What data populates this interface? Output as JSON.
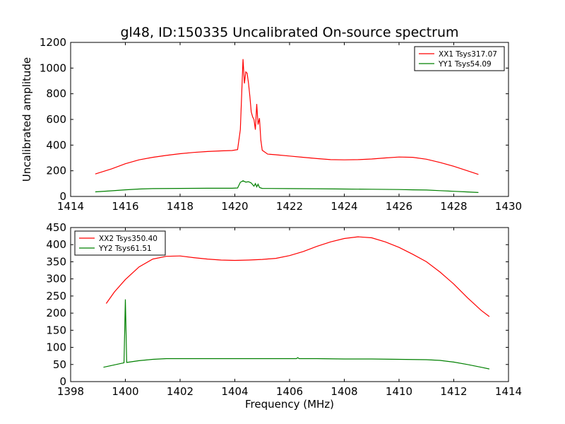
{
  "title": "gl48, ID:150335 Uncalibrated On-source spectrum",
  "colors": {
    "xx": "#ff0000",
    "yy": "#008000",
    "axis": "#000000",
    "background": "#ffffff"
  },
  "chart_data": [
    {
      "type": "line",
      "ylabel": "Uncalibrated amplitude",
      "xlabel": "",
      "xlim": [
        1414,
        1430
      ],
      "ylim": [
        0,
        1200
      ],
      "xticks": [
        1414,
        1416,
        1418,
        1420,
        1422,
        1424,
        1426,
        1428,
        1430
      ],
      "yticks": [
        0,
        200,
        400,
        600,
        800,
        1000,
        1200
      ],
      "legend_position": "top-right",
      "series": [
        {
          "name": "XX1 Tsys317.07",
          "color": "#ff0000",
          "x": [
            1414.9,
            1415.5,
            1416.0,
            1416.5,
            1417.0,
            1417.5,
            1418.0,
            1418.5,
            1419.0,
            1419.5,
            1419.9,
            1420.1,
            1420.2,
            1420.3,
            1420.35,
            1420.4,
            1420.45,
            1420.5,
            1420.55,
            1420.6,
            1420.65,
            1420.7,
            1420.75,
            1420.8,
            1420.85,
            1420.9,
            1420.95,
            1421.0,
            1421.2,
            1421.5,
            1422.0,
            1422.5,
            1423.0,
            1423.5,
            1424.0,
            1424.5,
            1425.0,
            1425.5,
            1426.0,
            1426.5,
            1427.0,
            1427.5,
            1428.0,
            1428.5,
            1428.9
          ],
          "y": [
            175,
            215,
            255,
            285,
            305,
            320,
            333,
            343,
            350,
            355,
            358,
            365,
            520,
            1070,
            880,
            970,
            960,
            880,
            780,
            660,
            620,
            600,
            520,
            720,
            560,
            610,
            440,
            360,
            330,
            325,
            315,
            305,
            295,
            287,
            285,
            287,
            292,
            300,
            307,
            305,
            290,
            265,
            235,
            200,
            172
          ]
        },
        {
          "name": "YY1 Tsys54.09",
          "color": "#008000",
          "x": [
            1414.9,
            1415.5,
            1416.0,
            1416.5,
            1417.0,
            1418.0,
            1419.0,
            1419.9,
            1420.1,
            1420.2,
            1420.3,
            1420.4,
            1420.5,
            1420.6,
            1420.7,
            1420.75,
            1420.8,
            1420.85,
            1420.9,
            1420.95,
            1421.0,
            1422.0,
            1423.0,
            1424.0,
            1425.0,
            1426.0,
            1426.5,
            1427.0,
            1427.5,
            1428.0,
            1428.5,
            1428.9
          ],
          "y": [
            36,
            44,
            52,
            58,
            61,
            63,
            64,
            64,
            66,
            110,
            122,
            112,
            115,
            105,
            80,
            100,
            75,
            95,
            70,
            66,
            63,
            61,
            60,
            58,
            56,
            54,
            52,
            50,
            45,
            40,
            35,
            31
          ]
        }
      ]
    },
    {
      "type": "line",
      "ylabel": "",
      "xlabel": "Frequency (MHz)",
      "xlim": [
        1398,
        1414
      ],
      "ylim": [
        0,
        450
      ],
      "xticks": [
        1398,
        1400,
        1402,
        1404,
        1406,
        1408,
        1410,
        1412,
        1414
      ],
      "yticks": [
        0,
        50,
        100,
        150,
        200,
        250,
        300,
        350,
        400,
        450
      ],
      "legend_position": "top-left",
      "series": [
        {
          "name": "XX2 Tsys350.40",
          "color": "#ff0000",
          "x": [
            1399.3,
            1399.6,
            1400.0,
            1400.5,
            1401.0,
            1401.5,
            1402.0,
            1402.5,
            1403.0,
            1403.5,
            1404.0,
            1404.5,
            1405.0,
            1405.5,
            1406.0,
            1406.5,
            1407.0,
            1407.5,
            1408.0,
            1408.5,
            1409.0,
            1409.5,
            1410.0,
            1410.5,
            1411.0,
            1411.5,
            1412.0,
            1412.5,
            1413.0,
            1413.3
          ],
          "y": [
            228,
            262,
            298,
            335,
            358,
            366,
            367,
            362,
            358,
            355,
            354,
            355,
            357,
            360,
            368,
            380,
            395,
            408,
            418,
            423,
            420,
            408,
            392,
            372,
            350,
            320,
            285,
            245,
            208,
            190
          ]
        },
        {
          "name": "YY2 Tsys61.51",
          "color": "#008000",
          "x": [
            1399.2,
            1399.5,
            1399.9,
            1399.95,
            1400.0,
            1400.05,
            1400.5,
            1401.0,
            1401.5,
            1402.0,
            1403.0,
            1404.0,
            1405.0,
            1406.0,
            1406.25,
            1406.3,
            1406.35,
            1407.0,
            1408.0,
            1409.0,
            1410.0,
            1411.0,
            1411.5,
            1412.0,
            1412.5,
            1413.0,
            1413.3
          ],
          "y": [
            42,
            47,
            54,
            55,
            240,
            56,
            61,
            65,
            67,
            67,
            67,
            67,
            67,
            67,
            67,
            70,
            67,
            67,
            66,
            66,
            65,
            64,
            62,
            57,
            50,
            42,
            37
          ]
        }
      ]
    }
  ]
}
